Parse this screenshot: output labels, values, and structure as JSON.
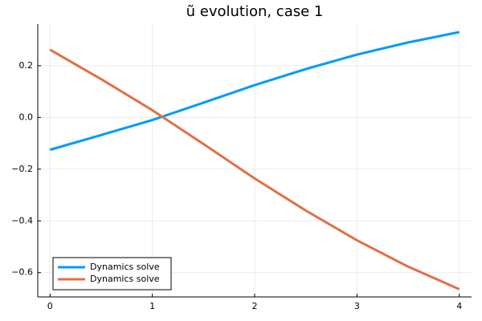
{
  "chart_data": {
    "type": "line",
    "title": "ũ evolution, case 1",
    "x": [
      0,
      0.5,
      1,
      1.5,
      2,
      2.5,
      3,
      3.5,
      4
    ],
    "series": [
      {
        "name": "Dynamics solve",
        "color": "#009afa",
        "values": [
          -0.125,
          -0.068,
          -0.01,
          0.057,
          0.125,
          0.187,
          0.243,
          0.29,
          0.33
        ]
      },
      {
        "name": "Dynamics solve",
        "color": "#e26f46",
        "values": [
          0.262,
          0.148,
          0.028,
          -0.103,
          -0.236,
          -0.36,
          -0.475,
          -0.577,
          -0.664
        ]
      }
    ],
    "xlim": [
      -0.12,
      4.12
    ],
    "xticks": [
      0,
      1,
      2,
      3,
      4
    ],
    "ylim": [
      -0.694,
      0.361
    ],
    "yticks": [
      {
        "value": -0.6,
        "label": "−0.6"
      },
      {
        "value": -0.4,
        "label": "−0.4"
      },
      {
        "value": -0.2,
        "label": "−0.2"
      },
      {
        "value": 0,
        "label": "0.0"
      },
      {
        "value": 0.2,
        "label": "0.2"
      }
    ],
    "grid": true,
    "legend": "bottom-left"
  }
}
